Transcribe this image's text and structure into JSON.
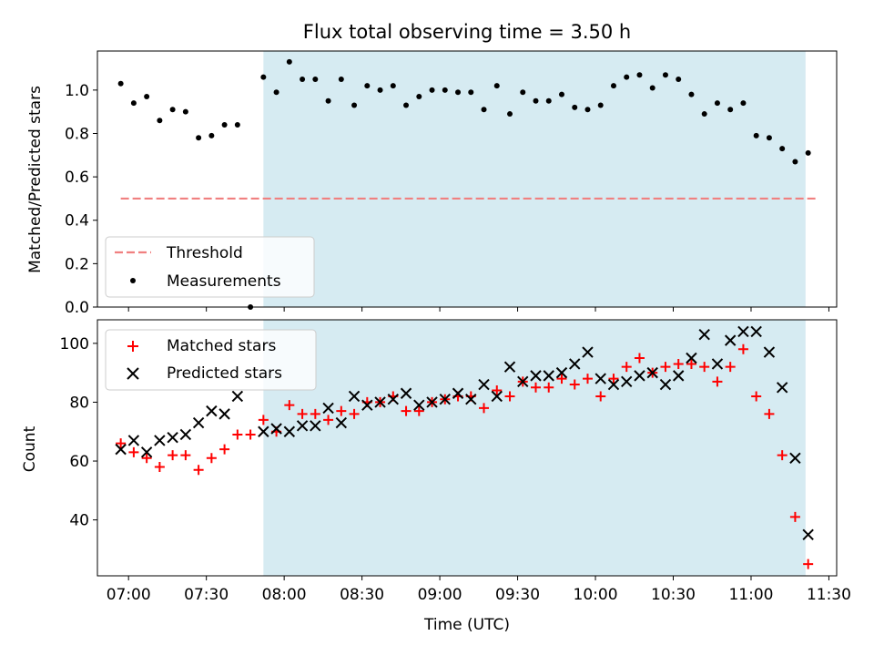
{
  "chart_data": [
    {
      "type": "scatter",
      "title": "Flux total observing time = 3.50 h",
      "ylabel": "Matched/Predicted stars",
      "ylim": [
        0,
        1.18
      ],
      "yticks": [
        0.0,
        0.2,
        0.4,
        0.6,
        0.8,
        1.0
      ],
      "ytick_labels": [
        "0.0",
        "0.2",
        "0.4",
        "0.6",
        "0.8",
        "1.0"
      ],
      "shaded_span": [
        "07:52",
        "11:21"
      ],
      "legend": {
        "placement": "lower-left",
        "entries": [
          "Threshold",
          "Measurements"
        ]
      },
      "threshold": {
        "name": "Threshold",
        "value": 0.5,
        "x_start": "06:57",
        "x_end": "11:25",
        "color": "#f08080"
      },
      "series": [
        {
          "name": "Measurements",
          "color": "#000000",
          "points": [
            [
              "06:57",
              1.03
            ],
            [
              "07:02",
              0.94
            ],
            [
              "07:07",
              0.97
            ],
            [
              "07:12",
              0.86
            ],
            [
              "07:17",
              0.91
            ],
            [
              "07:22",
              0.9
            ],
            [
              "07:27",
              0.78
            ],
            [
              "07:32",
              0.79
            ],
            [
              "07:37",
              0.84
            ],
            [
              "07:42",
              0.84
            ],
            [
              "07:47",
              0.0
            ],
            [
              "07:52",
              1.06
            ],
            [
              "07:57",
              0.99
            ],
            [
              "08:02",
              1.13
            ],
            [
              "08:07",
              1.05
            ],
            [
              "08:12",
              1.05
            ],
            [
              "08:17",
              0.95
            ],
            [
              "08:22",
              1.05
            ],
            [
              "08:27",
              0.93
            ],
            [
              "08:32",
              1.02
            ],
            [
              "08:37",
              1.0
            ],
            [
              "08:42",
              1.02
            ],
            [
              "08:47",
              0.93
            ],
            [
              "08:52",
              0.97
            ],
            [
              "08:57",
              1.0
            ],
            [
              "09:02",
              1.0
            ],
            [
              "09:07",
              0.99
            ],
            [
              "09:12",
              0.99
            ],
            [
              "09:17",
              0.91
            ],
            [
              "09:22",
              1.02
            ],
            [
              "09:27",
              0.89
            ],
            [
              "09:32",
              0.99
            ],
            [
              "09:37",
              0.95
            ],
            [
              "09:42",
              0.95
            ],
            [
              "09:47",
              0.98
            ],
            [
              "09:52",
              0.92
            ],
            [
              "09:57",
              0.91
            ],
            [
              "10:02",
              0.93
            ],
            [
              "10:07",
              1.02
            ],
            [
              "10:12",
              1.06
            ],
            [
              "10:17",
              1.07
            ],
            [
              "10:22",
              1.01
            ],
            [
              "10:27",
              1.07
            ],
            [
              "10:32",
              1.05
            ],
            [
              "10:37",
              0.98
            ],
            [
              "10:42",
              0.89
            ],
            [
              "10:47",
              0.94
            ],
            [
              "10:52",
              0.91
            ],
            [
              "10:57",
              0.94
            ],
            [
              "11:02",
              0.79
            ],
            [
              "11:07",
              0.78
            ],
            [
              "11:12",
              0.73
            ],
            [
              "11:17",
              0.67
            ],
            [
              "11:22",
              0.71
            ]
          ]
        }
      ]
    },
    {
      "type": "scatter",
      "xlabel": "Time (UTC)",
      "ylabel": "Count",
      "ylim": [
        21,
        108
      ],
      "yticks": [
        40,
        60,
        80,
        100
      ],
      "ytick_labels": [
        "40",
        "60",
        "80",
        "100"
      ],
      "xlim": [
        "06:48",
        "11:33"
      ],
      "xticks": [
        "07:00",
        "07:30",
        "08:00",
        "08:30",
        "09:00",
        "09:30",
        "10:00",
        "10:30",
        "11:00",
        "11:30"
      ],
      "shaded_span": [
        "07:52",
        "11:21"
      ],
      "legend": {
        "placement": "upper-left",
        "entries": [
          "Matched stars",
          "Predicted stars"
        ]
      },
      "series": [
        {
          "name": "Matched stars",
          "color": "#ff0000",
          "marker": "plus",
          "points": [
            [
              "06:57",
              66
            ],
            [
              "07:02",
              63
            ],
            [
              "07:07",
              61
            ],
            [
              "07:12",
              58
            ],
            [
              "07:17",
              62
            ],
            [
              "07:22",
              62
            ],
            [
              "07:27",
              57
            ],
            [
              "07:32",
              61
            ],
            [
              "07:37",
              64
            ],
            [
              "07:42",
              69
            ],
            [
              "07:47",
              69
            ],
            [
              "07:52",
              74
            ],
            [
              "07:57",
              70
            ],
            [
              "08:02",
              79
            ],
            [
              "08:07",
              76
            ],
            [
              "08:12",
              76
            ],
            [
              "08:17",
              74
            ],
            [
              "08:22",
              77
            ],
            [
              "08:27",
              76
            ],
            [
              "08:32",
              80
            ],
            [
              "08:37",
              80
            ],
            [
              "08:42",
              82
            ],
            [
              "08:47",
              77
            ],
            [
              "08:52",
              77
            ],
            [
              "08:57",
              80
            ],
            [
              "09:02",
              81
            ],
            [
              "09:07",
              82
            ],
            [
              "09:12",
              82
            ],
            [
              "09:17",
              78
            ],
            [
              "09:22",
              84
            ],
            [
              "09:27",
              82
            ],
            [
              "09:32",
              87
            ],
            [
              "09:37",
              85
            ],
            [
              "09:42",
              85
            ],
            [
              "09:47",
              88
            ],
            [
              "09:52",
              86
            ],
            [
              "09:57",
              88
            ],
            [
              "10:02",
              82
            ],
            [
              "10:07",
              88
            ],
            [
              "10:12",
              92
            ],
            [
              "10:17",
              95
            ],
            [
              "10:22",
              90
            ],
            [
              "10:27",
              92
            ],
            [
              "10:32",
              93
            ],
            [
              "10:37",
              93
            ],
            [
              "10:42",
              92
            ],
            [
              "10:47",
              87
            ],
            [
              "10:52",
              92
            ],
            [
              "10:57",
              98
            ],
            [
              "11:02",
              82
            ],
            [
              "11:07",
              76
            ],
            [
              "11:12",
              62
            ],
            [
              "11:17",
              41
            ],
            [
              "11:22",
              25
            ]
          ]
        },
        {
          "name": "Predicted stars",
          "color": "#000000",
          "marker": "x",
          "points": [
            [
              "06:57",
              64
            ],
            [
              "07:02",
              67
            ],
            [
              "07:07",
              63
            ],
            [
              "07:12",
              67
            ],
            [
              "07:17",
              68
            ],
            [
              "07:22",
              69
            ],
            [
              "07:27",
              73
            ],
            [
              "07:32",
              77
            ],
            [
              "07:37",
              76
            ],
            [
              "07:42",
              82
            ],
            [
              "07:52",
              70
            ],
            [
              "07:57",
              71
            ],
            [
              "08:02",
              70
            ],
            [
              "08:07",
              72
            ],
            [
              "08:12",
              72
            ],
            [
              "08:17",
              78
            ],
            [
              "08:22",
              73
            ],
            [
              "08:27",
              82
            ],
            [
              "08:32",
              79
            ],
            [
              "08:37",
              80
            ],
            [
              "08:42",
              81
            ],
            [
              "08:47",
              83
            ],
            [
              "08:52",
              79
            ],
            [
              "08:57",
              80
            ],
            [
              "09:02",
              81
            ],
            [
              "09:07",
              83
            ],
            [
              "09:12",
              81
            ],
            [
              "09:17",
              86
            ],
            [
              "09:22",
              82
            ],
            [
              "09:27",
              92
            ],
            [
              "09:32",
              87
            ],
            [
              "09:37",
              89
            ],
            [
              "09:42",
              89
            ],
            [
              "09:47",
              90
            ],
            [
              "09:52",
              93
            ],
            [
              "09:57",
              97
            ],
            [
              "10:02",
              88
            ],
            [
              "10:07",
              86
            ],
            [
              "10:12",
              87
            ],
            [
              "10:17",
              89
            ],
            [
              "10:22",
              90
            ],
            [
              "10:27",
              86
            ],
            [
              "10:32",
              89
            ],
            [
              "10:37",
              95
            ],
            [
              "10:42",
              103
            ],
            [
              "10:47",
              93
            ],
            [
              "10:52",
              101
            ],
            [
              "10:57",
              104
            ],
            [
              "11:02",
              104
            ],
            [
              "11:07",
              97
            ],
            [
              "11:12",
              85
            ],
            [
              "11:17",
              61
            ],
            [
              "11:22",
              35
            ]
          ]
        }
      ]
    }
  ]
}
